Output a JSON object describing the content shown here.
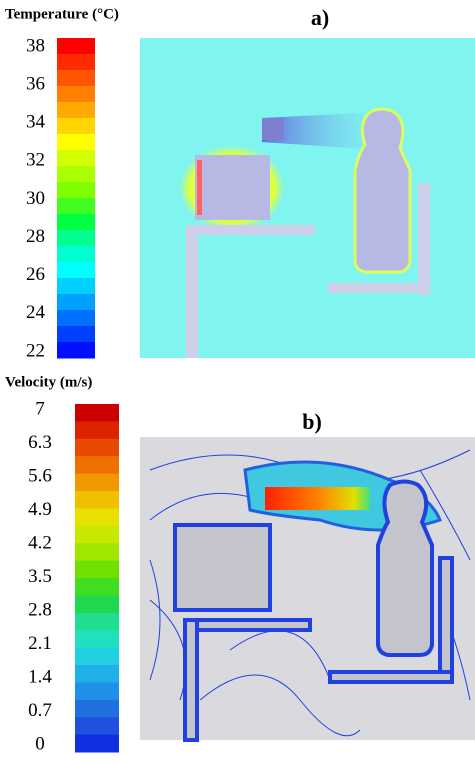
{
  "chart_data": [
    {
      "type": "heatmap",
      "title": "Temperature (°C)",
      "panel_label": "a)",
      "clim": [
        22,
        38
      ],
      "ticks": [
        22,
        24,
        26,
        28,
        30,
        32,
        34,
        36,
        38
      ],
      "colors": [
        "#ff0000",
        "#ff2a00",
        "#ff5500",
        "#ff7f00",
        "#ffaa00",
        "#ffd400",
        "#ffff00",
        "#d4ff00",
        "#aaff00",
        "#7fff00",
        "#40ff20",
        "#00ff40",
        "#00ff90",
        "#00ffd0",
        "#00ffff",
        "#00d0ff",
        "#00a0ff",
        "#0070ff",
        "#0040ff",
        "#0010ff"
      ]
    },
    {
      "type": "heatmap",
      "title": "Velocity (m/s)",
      "panel_label": "b)",
      "clim": [
        0,
        7
      ],
      "ticks": [
        0,
        0.7,
        1.4,
        2.1,
        2.8,
        3.5,
        4.2,
        4.9,
        5.6,
        6.3,
        7
      ],
      "colors": [
        "#cc0000",
        "#dd2200",
        "#e84a00",
        "#ee7000",
        "#f09800",
        "#f0c000",
        "#e8e000",
        "#c8e800",
        "#a0e800",
        "#70e000",
        "#40dd20",
        "#20d850",
        "#20dd90",
        "#20e0c0",
        "#20d0e0",
        "#20b0e8",
        "#2090e8",
        "#2070e0",
        "#2050e0",
        "#1030e0"
      ]
    }
  ]
}
